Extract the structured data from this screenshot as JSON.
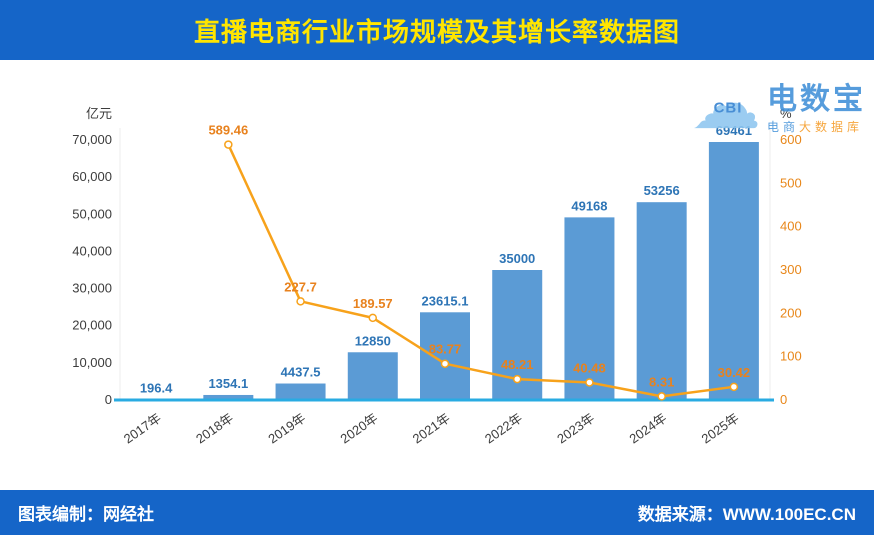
{
  "header": {
    "title": "直播电商行业市场规模及其增长率数据图"
  },
  "logo": {
    "cloud_text": "CBI",
    "name": "电数宝",
    "tagline_left": "电商",
    "tagline_right": "大数据库"
  },
  "footer": {
    "left": "图表编制：网经社",
    "right": "数据来源：WWW.100EC.CN"
  },
  "colors": {
    "banner_bg": "#1565c8",
    "title_text": "#ffe500",
    "bar": "#5b9bd5",
    "bar_label": "#2e75b6",
    "line": "#f7a21b",
    "line_label": "#e8821e",
    "x_axis_line": "#29abe2",
    "footer_text": "#ffffff"
  },
  "chart_data": {
    "type": "bar",
    "title": "直播电商行业市场规模及其增长率数据图",
    "categories": [
      "2017年",
      "2018年",
      "2019年",
      "2020年",
      "2021年",
      "2022年",
      "2023年",
      "2024年",
      "2025年"
    ],
    "series": [
      {
        "type": "bar",
        "axis": "left",
        "color": "#5b9bd5",
        "values": [
          196.4,
          1354.1,
          4437.5,
          12850,
          23615.1,
          35000,
          49168,
          53256,
          69461
        ],
        "labels": [
          "196.4",
          "1354.1",
          "4437.5",
          "12850",
          "23615.1",
          "35000",
          "49168",
          "53256",
          "69461"
        ]
      },
      {
        "type": "line",
        "axis": "right",
        "color": "#f7a21b",
        "values": [
          null,
          589.46,
          227.7,
          189.57,
          83.77,
          48.21,
          40.48,
          8.31,
          30.42
        ],
        "labels": [
          "",
          "589.46",
          "227.7",
          "189.57",
          "83.77",
          "48.21",
          "40.48",
          "8.31",
          "30.42"
        ]
      }
    ],
    "left_axis": {
      "title": "亿元",
      "min": 0,
      "max": 70000,
      "tick_step": 10000,
      "tick_labels": [
        "0",
        "10,000",
        "20,000",
        "30,000",
        "40,000",
        "50,000",
        "60,000",
        "70,000"
      ]
    },
    "right_axis": {
      "title": "%",
      "min": 0,
      "max": 600,
      "tick_step": 100,
      "tick_labels": [
        "0",
        "100",
        "200",
        "300",
        "400",
        "500",
        "600"
      ]
    },
    "grid": false,
    "legend": "none"
  }
}
